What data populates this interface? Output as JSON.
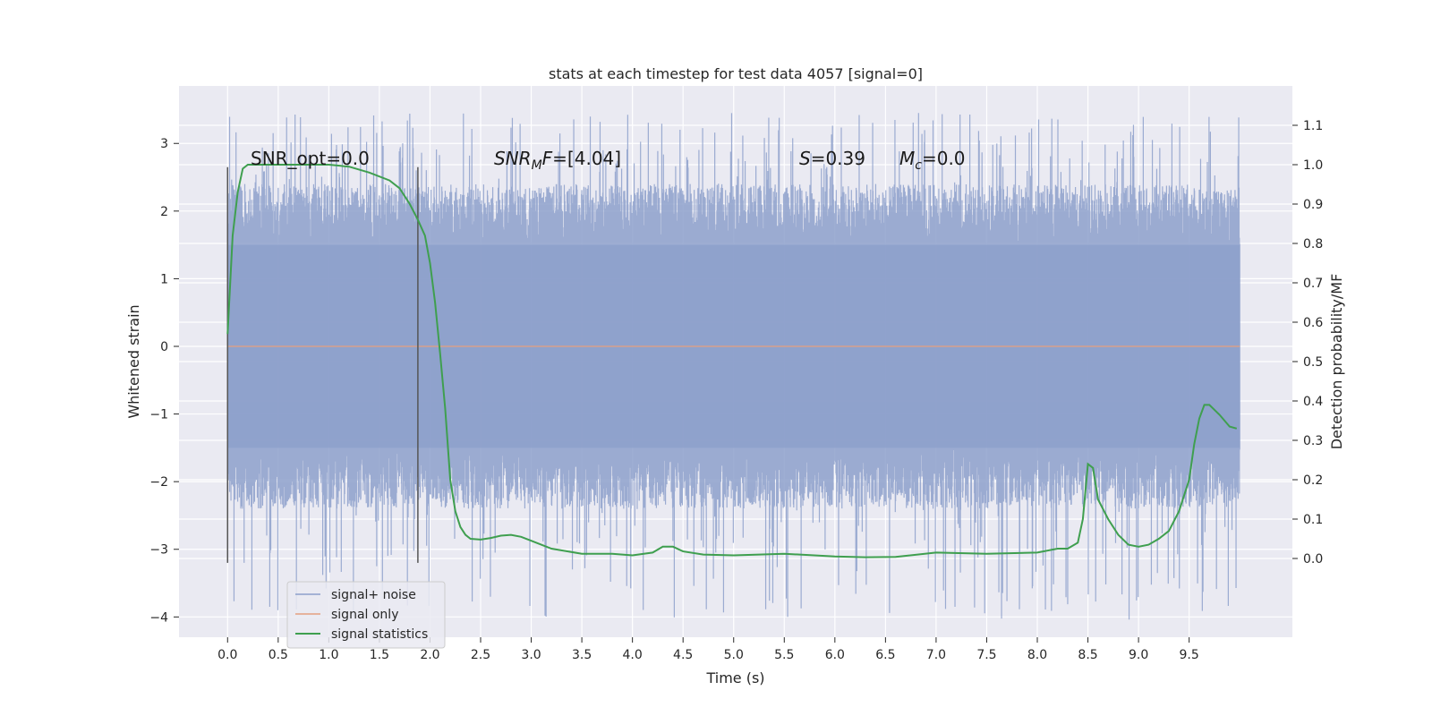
{
  "chart_data": {
    "type": "line",
    "title": "stats at each timestep for test data 4057 [signal=0]",
    "xlabel": "Time (s)",
    "ylabel": "Whitened strain",
    "y2label": "Detection probability/MF",
    "xlim": [
      -0.48,
      10.52
    ],
    "ylim": [
      -4.3,
      3.85
    ],
    "y2lim": [
      -0.2,
      1.2
    ],
    "xticks": [
      "0.0",
      "0.5",
      "1.0",
      "1.5",
      "2.0",
      "2.5",
      "3.0",
      "3.5",
      "4.0",
      "4.5",
      "5.0",
      "5.5",
      "6.0",
      "6.5",
      "7.0",
      "7.5",
      "8.0",
      "8.5",
      "9.0",
      "9.5"
    ],
    "yticks": [
      "−4",
      "−3",
      "−2",
      "−1",
      "0",
      "1",
      "2",
      "3"
    ],
    "y2ticks": [
      "0.0",
      "0.1",
      "0.2",
      "0.3",
      "0.4",
      "0.5",
      "0.6",
      "0.7",
      "0.8",
      "0.9",
      "1.0",
      "1.1"
    ],
    "grid": true,
    "legend": {
      "position": "lower-left",
      "entries": [
        {
          "label": "signal+ noise",
          "color": "#8da0cb"
        },
        {
          "label": "signal only",
          "color": "#e5a07f"
        },
        {
          "label": "signal statistics",
          "color": "#3f9f4f"
        }
      ]
    },
    "annotations": {
      "snr_opt": {
        "prefix": "SNR_opt",
        "value": "=0.0"
      },
      "snr_mf": {
        "base": "SNR",
        "sub": "M",
        "suffix": "F",
        "value": "=[4.04]"
      },
      "s": {
        "base": "S",
        "value": "=0.39"
      },
      "mc": {
        "base": "M",
        "sub": "c",
        "value": "=0.0"
      }
    },
    "markers": {
      "vlines_x": [
        0.0,
        1.88
      ],
      "vline_range": [
        -3.2,
        2.65
      ]
    },
    "series": [
      {
        "name": "signal+ noise",
        "color": "#8da0cb",
        "x_range": [
          0.0,
          10.0
        ],
        "band": [
          -1.5,
          1.5
        ],
        "max_excursion": [
          -4.05,
          3.45
        ]
      },
      {
        "name": "signal only",
        "color": "#e5a07f",
        "x": [
          0.0,
          10.0
        ],
        "y": [
          0.0,
          0.0
        ]
      },
      {
        "name": "signal statistics",
        "color": "#3f9f4f",
        "axis": "right",
        "x": [
          0.0,
          0.05,
          0.1,
          0.15,
          0.2,
          0.3,
          0.5,
          0.8,
          1.0,
          1.2,
          1.4,
          1.6,
          1.7,
          1.8,
          1.88,
          1.95,
          2.0,
          2.05,
          2.1,
          2.15,
          2.2,
          2.25,
          2.3,
          2.35,
          2.4,
          2.5,
          2.6,
          2.7,
          2.8,
          2.9,
          3.0,
          3.2,
          3.5,
          3.8,
          4.0,
          4.2,
          4.3,
          4.4,
          4.5,
          4.7,
          5.0,
          5.5,
          6.0,
          6.3,
          6.6,
          7.0,
          7.5,
          8.0,
          8.2,
          8.3,
          8.4,
          8.45,
          8.5,
          8.55,
          8.6,
          8.7,
          8.8,
          8.9,
          9.0,
          9.1,
          9.2,
          9.3,
          9.4,
          9.5,
          9.55,
          9.6,
          9.65,
          9.7,
          9.8,
          9.9,
          9.97
        ],
        "y": [
          0.57,
          0.82,
          0.93,
          0.99,
          1.0,
          1.0,
          1.0,
          1.0,
          1.0,
          0.995,
          0.98,
          0.96,
          0.94,
          0.9,
          0.86,
          0.82,
          0.75,
          0.65,
          0.52,
          0.38,
          0.2,
          0.12,
          0.08,
          0.06,
          0.05,
          0.048,
          0.052,
          0.058,
          0.06,
          0.055,
          0.045,
          0.025,
          0.012,
          0.012,
          0.008,
          0.015,
          0.03,
          0.03,
          0.018,
          0.01,
          0.008,
          0.012,
          0.005,
          0.003,
          0.004,
          0.015,
          0.012,
          0.015,
          0.025,
          0.025,
          0.04,
          0.1,
          0.24,
          0.23,
          0.15,
          0.1,
          0.06,
          0.035,
          0.03,
          0.035,
          0.05,
          0.07,
          0.12,
          0.2,
          0.29,
          0.355,
          0.39,
          0.39,
          0.365,
          0.335,
          0.33
        ]
      }
    ]
  }
}
